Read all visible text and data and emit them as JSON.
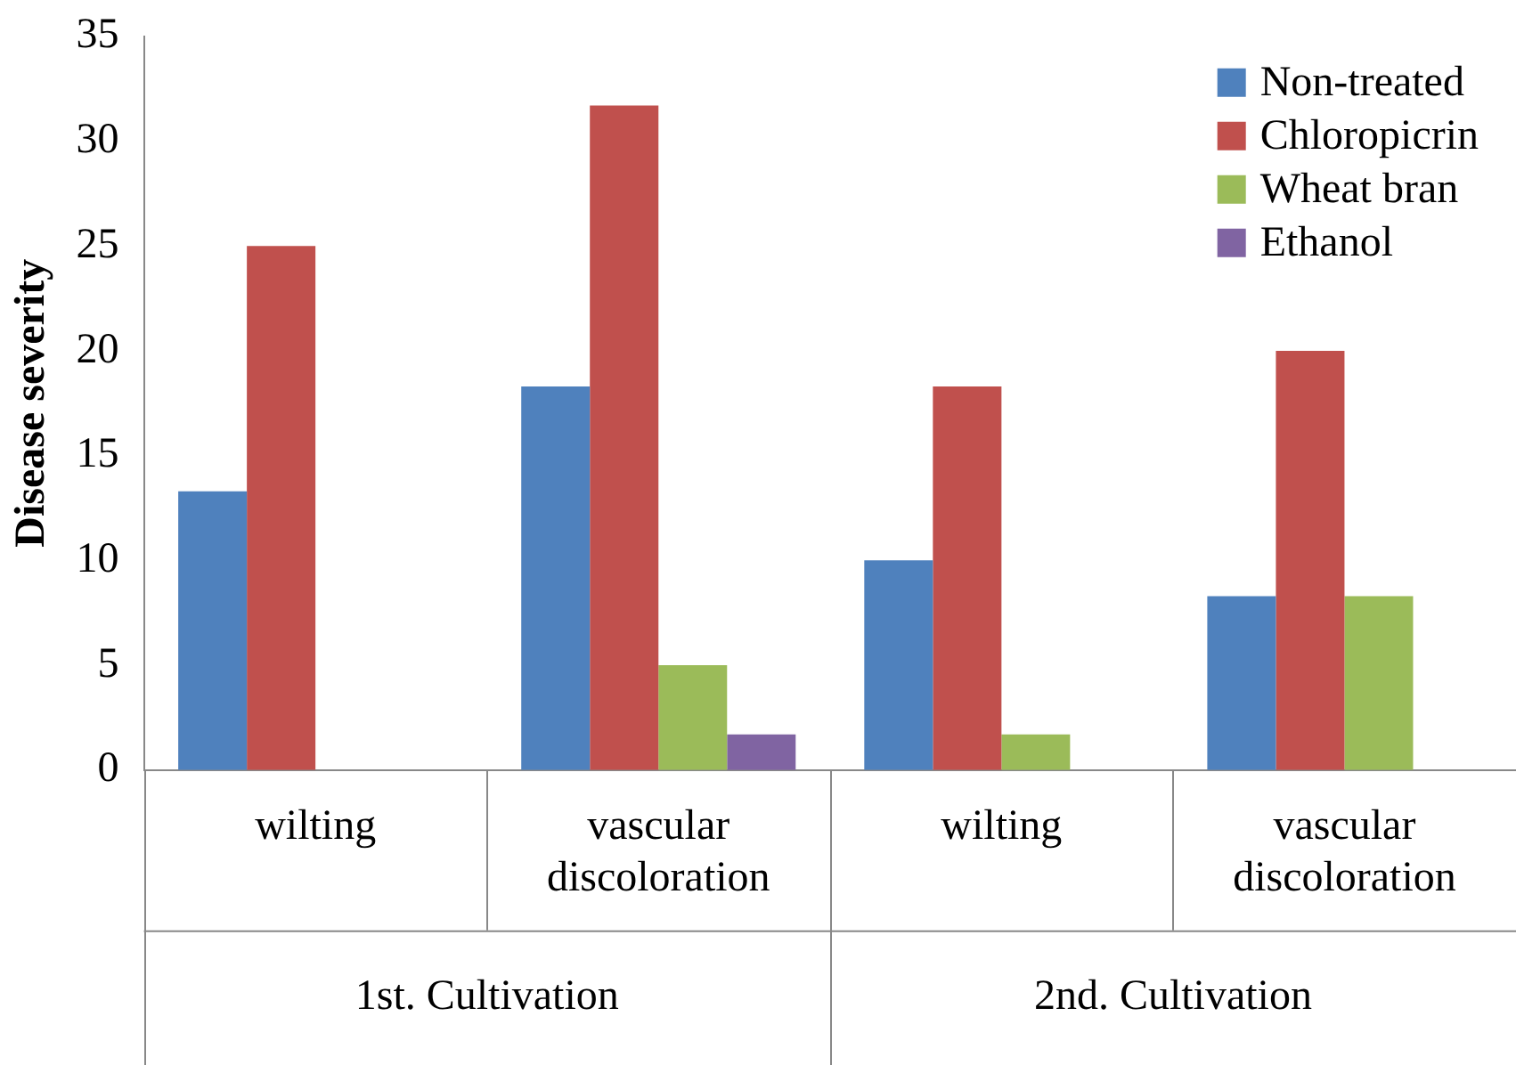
{
  "chart_data": {
    "type": "bar",
    "ylabel": "Disease severity",
    "categories": [
      "wilting",
      "vascular discoloration",
      "wilting",
      "vascular discoloration"
    ],
    "series": [
      {
        "name": "Non-treated",
        "color": "#4f81bd",
        "values": [
          13.3,
          18.3,
          10,
          8.3
        ]
      },
      {
        "name": "Chloropicrin",
        "color": "#c0504d",
        "values": [
          25,
          31.7,
          18.3,
          20
        ]
      },
      {
        "name": "Wheat bran",
        "color": "#9bbb59",
        "values": [
          0,
          5,
          1.7,
          8.3
        ]
      },
      {
        "name": "Ethanol",
        "color": "#8064a2",
        "values": [
          0,
          1.7,
          0,
          0
        ]
      }
    ],
    "annotations": [
      "1st. Cultivation",
      "2nd. Cultivation"
    ],
    "ylim": [
      0,
      35
    ],
    "yticks": [
      0,
      5,
      10,
      15,
      20,
      25,
      30,
      35
    ],
    "grid": false,
    "legend": "top right"
  }
}
